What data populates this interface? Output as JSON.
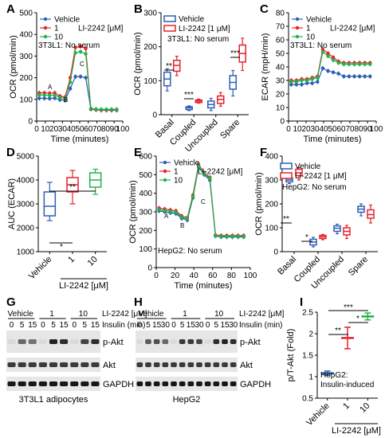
{
  "colors": {
    "vehicle": "#2b5fb4",
    "d1": "#e8202a",
    "d10": "#20b24a",
    "black": "#000000"
  },
  "panels": {
    "A": {
      "label": "A",
      "legend": [
        "Vehicle",
        "1",
        "10"
      ],
      "legend_conc": "LI-2242 [μM]",
      "cond": "3T3L1: No serum",
      "xlabel": "Time (minutes)",
      "ylabel": "OCR (pmol/min)",
      "marks": [
        "A",
        "B",
        "C"
      ]
    },
    "B": {
      "label": "B",
      "legend": [
        "Vehicle",
        "LI-2242 [1 μM]"
      ],
      "cond": "3T3L1: No serum",
      "ylabel": "OCR (pmol/min)",
      "cats": [
        "Basal",
        "Coupled",
        "Uncoupled",
        "Spare"
      ],
      "sig": [
        "**",
        "***",
        "***"
      ]
    },
    "C": {
      "label": "C",
      "legend": [
        "Vehicle",
        "1",
        "10"
      ],
      "legend_conc": "LI-2242 [μM]",
      "cond": "3T3L1: No serum",
      "xlabel": "Time (minutes)",
      "ylabel": "ECAR (mpH/min)"
    },
    "D": {
      "label": "D",
      "ylabel": "AUC (ECAR)",
      "cats": [
        "Vehicle",
        "1",
        "10"
      ],
      "sig": [
        "**",
        "*"
      ],
      "xlabel": "LI-2242 [μM]"
    },
    "E": {
      "label": "E",
      "legend": [
        "Vehicle",
        "1",
        "10"
      ],
      "legend_conc": "LI-2242 [μM]",
      "cond": "HepG2: No serum",
      "xlabel": "Time (minutes)",
      "ylabel": "OCR (pmol/min)",
      "marks": [
        "A",
        "B",
        "C"
      ]
    },
    "F": {
      "label": "F",
      "legend": [
        "Vehicle",
        "LI-2242 [1 μM]"
      ],
      "cond": "HepG2: No serum",
      "ylabel": "OCR (pmol/min)",
      "cats": [
        "Basal",
        "Coupled",
        "Uncoupled",
        "Spare"
      ],
      "sig": [
        "**",
        "*"
      ]
    },
    "G": {
      "label": "G",
      "groups": [
        "Vehicle",
        "1",
        "10"
      ],
      "conc": "LI-2242 [μM]",
      "insulin": "Insulin (min)",
      "times": [
        "0",
        "5",
        "15",
        "0",
        "5",
        "15",
        "0",
        "5",
        "15"
      ],
      "bands": [
        "p-Akt",
        "Akt",
        "GAPDH"
      ],
      "caption": "3T3L1 adipocytes"
    },
    "H": {
      "label": "H",
      "groups": [
        "Vehicle",
        "1",
        "10"
      ],
      "conc": "LI-2242 [μM]",
      "insulin": "Insulin (min)",
      "times": [
        "0",
        "5",
        "15",
        "30",
        "0",
        "5",
        "15",
        "30",
        "0",
        "5",
        "15",
        "30"
      ],
      "bands": [
        "p-Akt",
        "Akt",
        "GAPDH"
      ],
      "caption": "HepG2"
    },
    "I": {
      "label": "I",
      "ylabel": "p/T-Akt (Fold)",
      "cats": [
        "Vehicle",
        "1",
        "10"
      ],
      "cond1": "HepG2:",
      "cond2": "Insulin-induced",
      "sig": [
        "***",
        "**",
        "*"
      ],
      "xlabel": "LI-2242 [μM]"
    }
  },
  "chart_data": [
    {
      "panel": "A",
      "type": "line",
      "xlim": [
        0,
        100
      ],
      "ylim": [
        0,
        500
      ],
      "xticks": [
        0,
        10,
        20,
        30,
        40,
        50,
        60,
        70,
        80,
        90,
        100
      ],
      "yticks": [
        0,
        100,
        200,
        300,
        400,
        500
      ],
      "x": [
        3,
        9,
        15,
        21,
        27,
        33,
        39,
        45,
        51,
        57,
        63,
        69,
        75,
        81,
        87,
        93
      ],
      "series": [
        {
          "name": "Vehicle",
          "values": [
            105,
            105,
            104,
            106,
            98,
            95,
            150,
            205,
            205,
            200,
            55,
            52,
            50,
            50,
            50,
            50
          ]
        },
        {
          "name": "1",
          "values": [
            130,
            130,
            128,
            130,
            115,
            110,
            200,
            340,
            345,
            335,
            55,
            52,
            52,
            52,
            52,
            52
          ]
        },
        {
          "name": "10",
          "values": [
            120,
            120,
            118,
            120,
            108,
            103,
            180,
            315,
            320,
            310,
            58,
            55,
            54,
            54,
            54,
            54
          ]
        }
      ]
    },
    {
      "panel": "B",
      "type": "box",
      "ylim": [
        0,
        300
      ],
      "yticks": [
        0,
        100,
        200,
        300
      ],
      "categories": [
        "Basal",
        "Coupled",
        "Uncoupled",
        "Spare"
      ],
      "series": [
        {
          "name": "Vehicle",
          "values": [
            [
              70,
              85,
              105,
              125,
              135
            ],
            [
              12,
              15,
              20,
              23,
              26
            ],
            [
              12,
              20,
              30,
              40,
              48
            ],
            [
              55,
              75,
              95,
              115,
              130
            ]
          ]
        },
        {
          "name": "LI-2242 [1 μM]",
          "values": [
            [
              115,
              128,
              145,
              160,
              172
            ],
            [
              34,
              36,
              40,
              43,
              46
            ],
            [
              25,
              33,
              45,
              55,
              65
            ],
            [
              130,
              155,
              180,
              205,
              225
            ]
          ]
        }
      ]
    },
    {
      "panel": "C",
      "type": "line",
      "xlim": [
        0,
        100
      ],
      "ylim": [
        0,
        80
      ],
      "xticks": [
        0,
        10,
        20,
        30,
        40,
        50,
        60,
        70,
        80,
        90,
        100
      ],
      "yticks": [
        0,
        10,
        20,
        30,
        40,
        50,
        60,
        70,
        80
      ],
      "x": [
        3,
        9,
        15,
        21,
        27,
        33,
        39,
        45,
        51,
        57,
        63,
        69,
        75,
        81,
        87,
        93
      ],
      "series": [
        {
          "name": "Vehicle",
          "values": [
            27,
            27,
            27,
            28,
            28,
            29,
            39,
            37,
            36,
            35,
            33,
            33,
            33,
            33,
            33,
            33
          ]
        },
        {
          "name": "1",
          "values": [
            30,
            30,
            31,
            31,
            32,
            33,
            53,
            50,
            47,
            44,
            43,
            43,
            43,
            43,
            43,
            43
          ]
        },
        {
          "name": "10",
          "values": [
            29,
            29,
            30,
            30,
            31,
            32,
            51,
            48,
            45,
            43,
            42,
            42,
            42,
            42,
            42,
            42
          ]
        }
      ]
    },
    {
      "panel": "D",
      "type": "box",
      "ylim": [
        1000,
        5000
      ],
      "yticks": [
        1000,
        2000,
        3000,
        4000,
        5000
      ],
      "categories": [
        "Vehicle",
        "1",
        "10"
      ],
      "series": [
        {
          "name": "box",
          "values": [
            [
              2300,
              2500,
              2900,
              3500,
              3900
            ],
            [
              3000,
              3500,
              3800,
              4100,
              4400
            ],
            [
              3400,
              3700,
              4000,
              4300,
              4450
            ]
          ]
        }
      ]
    },
    {
      "panel": "E",
      "type": "line",
      "xlim": [
        0,
        100
      ],
      "ylim": [
        0,
        600
      ],
      "xticks": [
        0,
        20,
        40,
        60,
        80,
        100
      ],
      "yticks": [
        0,
        100,
        200,
        300,
        400,
        500,
        600
      ],
      "x": [
        3,
        9,
        15,
        21,
        27,
        33,
        39,
        45,
        51,
        57,
        63,
        69,
        75,
        81,
        87,
        93
      ],
      "series": [
        {
          "name": "Vehicle",
          "values": [
            305,
            300,
            295,
            290,
            265,
            255,
            375,
            540,
            500,
            470,
            170,
            165,
            165,
            165,
            165,
            165
          ]
        },
        {
          "name": "1",
          "values": [
            320,
            315,
            310,
            305,
            278,
            268,
            390,
            555,
            510,
            485,
            175,
            172,
            172,
            172,
            172,
            172
          ]
        },
        {
          "name": "10",
          "values": [
            312,
            307,
            302,
            297,
            272,
            262,
            382,
            548,
            505,
            478,
            172,
            168,
            168,
            168,
            168,
            168
          ]
        }
      ]
    },
    {
      "panel": "F",
      "type": "box",
      "ylim": [
        0,
        400
      ],
      "yticks": [
        0,
        100,
        200,
        300,
        400
      ],
      "categories": [
        "Basal",
        "Coupled",
        "Uncoupled",
        "Spare"
      ],
      "series": [
        {
          "name": "Vehicle",
          "values": [
            [
              285,
              292,
              300,
              308,
              312
            ],
            [
              20,
              28,
              40,
              52,
              60
            ],
            [
              75,
              85,
              98,
              108,
              115
            ],
            [
              150,
              165,
              178,
              190,
              200
            ]
          ]
        },
        {
          "name": "LI-2242 [1 μM]",
          "values": [
            [
              300,
              318,
              330,
              345,
              352
            ],
            [
              50,
              55,
              62,
              68,
              72
            ],
            [
              55,
              70,
              85,
              100,
              110
            ],
            [
              120,
              140,
              155,
              175,
              195
            ]
          ]
        }
      ]
    },
    {
      "panel": "I",
      "type": "scatter",
      "ylim": [
        0.5,
        2.5
      ],
      "yticks": [
        0.5,
        1.0,
        1.5,
        2.0,
        2.5
      ],
      "categories": [
        "Vehicle",
        "1",
        "10"
      ],
      "series": [
        {
          "name": "mean",
          "values": [
            1.08,
            1.9,
            2.4
          ],
          "err": [
            0.05,
            0.25,
            0.08
          ]
        }
      ]
    }
  ]
}
